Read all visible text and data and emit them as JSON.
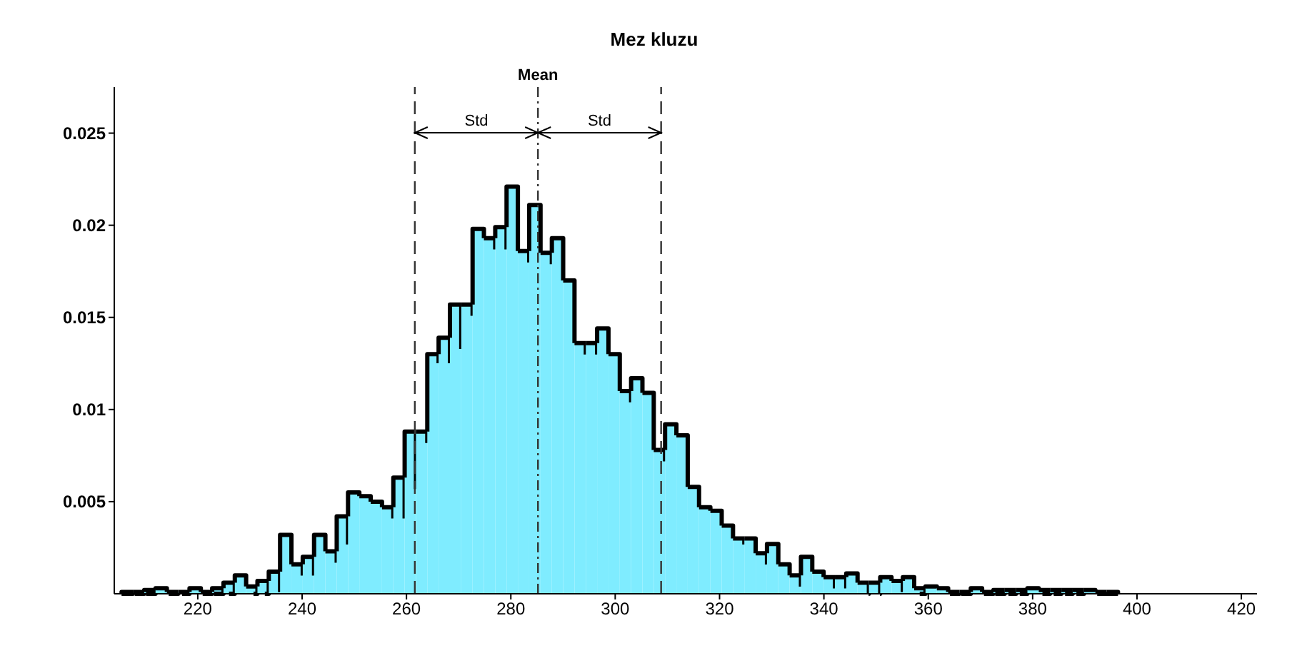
{
  "chart_data": {
    "type": "histogram",
    "title": "Mez kluzu",
    "color": "#7fecff",
    "bins": [
      205.4,
      207.57,
      209.74,
      211.91,
      214.08,
      216.25,
      218.42,
      220.59,
      222.76,
      224.93,
      227.1,
      229.27,
      231.44,
      233.61,
      235.78,
      237.95,
      240.12,
      242.29,
      244.46,
      246.63,
      248.8,
      250.97,
      253.14,
      255.31,
      257.48,
      259.65,
      261.82,
      263.99,
      266.16,
      268.33,
      270.5,
      272.67,
      274.84,
      277.01,
      279.18,
      281.35,
      283.52,
      285.69,
      287.86,
      290.03,
      292.2,
      294.37,
      296.54,
      298.71,
      300.88,
      303.05,
      305.22,
      307.39,
      309.56,
      311.73,
      313.9,
      316.07,
      318.24,
      320.41,
      322.58,
      324.75,
      326.92,
      329.09,
      331.26,
      333.43,
      335.6,
      337.77,
      339.94,
      342.11,
      344.28,
      346.45,
      348.62,
      350.79,
      352.96,
      355.13,
      357.3,
      359.47,
      361.64,
      363.81,
      365.98,
      368.15,
      370.32,
      372.49,
      374.66,
      376.83,
      379.0,
      381.17,
      383.34,
      385.51,
      387.68,
      389.85,
      392.02,
      394.19,
      396.36
    ],
    "values": [
      0.0001,
      0.0001,
      0.0002,
      0.0003,
      0.0001,
      0.0001,
      0.0003,
      0.0001,
      0.0003,
      0.0006,
      0.001,
      0.0004,
      0.0007,
      0.0012,
      0.0032,
      0.0016,
      0.002,
      0.0032,
      0.0023,
      0.0042,
      0.0055,
      0.0053,
      0.005,
      0.0047,
      0.0063,
      0.0088,
      0.0088,
      0.013,
      0.0139,
      0.0157,
      0.0157,
      0.0198,
      0.0193,
      0.0199,
      0.0221,
      0.0186,
      0.0211,
      0.0185,
      0.0193,
      0.017,
      0.0136,
      0.0136,
      0.0144,
      0.013,
      0.011,
      0.0117,
      0.0109,
      0.0078,
      0.0092,
      0.0086,
      0.0058,
      0.0047,
      0.0045,
      0.0037,
      0.003,
      0.003,
      0.0022,
      0.0027,
      0.0016,
      0.001,
      0.002,
      0.0012,
      0.0009,
      0.0009,
      0.0011,
      0.0006,
      0.0006,
      0.0009,
      0.0007,
      0.0009,
      0.0003,
      0.0004,
      0.0003,
      0.0001,
      0.0001,
      0.0003,
      0.0001,
      0.0002,
      0.0002,
      0.0002,
      0.0003,
      0.0002,
      0.0002,
      0.0002,
      0.0002,
      0.0002,
      0.0001,
      0.0001
    ],
    "xlim": [
      204,
      423
    ],
    "xticks": [
      220,
      240,
      260,
      280,
      300,
      320,
      340,
      360,
      380,
      400,
      420
    ],
    "ylim": [
      0,
      0.0275
    ],
    "yticks": [
      0.005,
      0.01,
      0.015,
      0.02,
      0.025
    ],
    "ref_lines": [
      {
        "axis": "x",
        "value": 261.6,
        "line_style": "dashed"
      },
      {
        "axis": "x",
        "value": 285.2,
        "label": "Mean",
        "line_style": "dotted"
      },
      {
        "axis": "x",
        "value": 308.8,
        "line_style": "dashed"
      }
    ],
    "annotations": [
      "Std",
      "Std"
    ]
  }
}
